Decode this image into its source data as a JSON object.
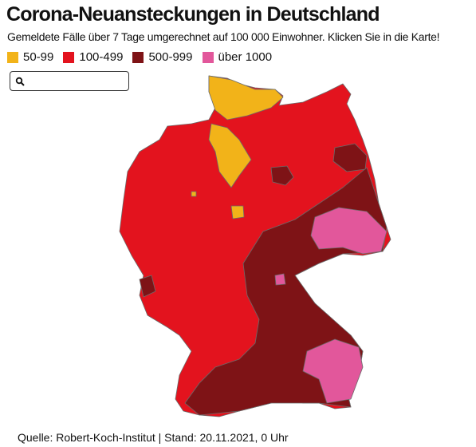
{
  "header": {
    "title": "Corona-Neuansteckungen in Deutschland",
    "subtitle": "Gemeldete Fälle über 7 Tage umgerechnet auf 100 000 Einwohner. Klicken Sie in die Karte!"
  },
  "legend": [
    {
      "label": "50-99",
      "color": "#f2b319"
    },
    {
      "label": "100-499",
      "color": "#e3131e"
    },
    {
      "label": "500-999",
      "color": "#7e1316"
    },
    {
      "label": "über 1000",
      "color": "#e2579b"
    }
  ],
  "source": "Quelle: Robert-Koch-Institut | Stand: 20.11.2021, 0 Uhr"
}
